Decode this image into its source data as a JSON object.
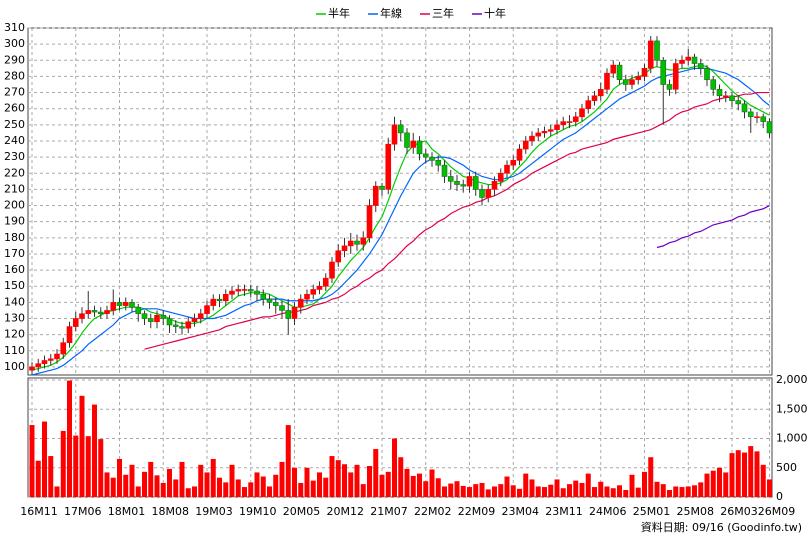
{
  "chart_data": {
    "type": "candlestick",
    "source": "資料日期: 09/16 (Goodinfo.tw)",
    "categories": [
      "16M11",
      null,
      null,
      null,
      null,
      null,
      null,
      "17M06",
      null,
      null,
      null,
      null,
      null,
      null,
      "18M01",
      null,
      null,
      null,
      null,
      null,
      null,
      "18M08",
      null,
      null,
      null,
      null,
      null,
      null,
      "19M03",
      null,
      null,
      null,
      null,
      null,
      null,
      "19M10",
      null,
      null,
      null,
      null,
      null,
      null,
      "20M05",
      null,
      null,
      null,
      null,
      null,
      null,
      "20M12",
      null,
      null,
      null,
      null,
      null,
      null,
      "21M07",
      null,
      null,
      null,
      null,
      null,
      null,
      "22M02",
      null,
      null,
      null,
      null,
      null,
      null,
      "22M09",
      null,
      null,
      null,
      null,
      null,
      null,
      "23M04",
      null,
      null,
      null,
      null,
      null,
      null,
      "23M11",
      null,
      null,
      null,
      null,
      null,
      null,
      "24M06",
      null,
      null,
      null,
      null,
      null,
      null,
      "25M01",
      null,
      null,
      null,
      null,
      null,
      null,
      "25M08",
      null,
      null,
      null,
      null,
      null,
      null,
      "26M03",
      null,
      null,
      null,
      null,
      null,
      "26M09"
    ],
    "open": [
      98,
      100,
      102,
      104,
      105,
      108,
      115,
      125,
      130,
      133,
      135,
      134,
      133,
      135,
      140,
      138,
      140,
      137,
      133,
      130,
      128,
      132,
      130,
      126,
      125,
      124,
      128,
      130,
      133,
      138,
      142,
      141,
      145,
      147,
      148,
      148,
      147,
      145,
      142,
      140,
      138,
      135,
      130,
      137,
      142,
      145,
      148,
      150,
      155,
      165,
      172,
      175,
      178,
      176,
      180,
      200,
      212,
      210,
      238,
      250,
      245,
      236,
      240,
      232,
      230,
      228,
      225,
      218,
      215,
      213,
      212,
      218,
      210,
      205,
      210,
      215,
      220,
      225,
      228,
      235,
      240,
      243,
      245,
      246,
      247,
      250,
      252,
      252,
      255,
      260,
      265,
      268,
      272,
      282,
      287,
      278,
      275,
      278,
      280,
      285,
      302,
      290,
      275,
      272,
      288,
      290,
      292,
      288,
      285,
      278,
      272,
      268,
      268,
      265,
      263,
      258,
      255,
      255,
      252
    ],
    "high": [
      103,
      105,
      107,
      108,
      111,
      118,
      128,
      134,
      137,
      147,
      138,
      137,
      138,
      148,
      143,
      143,
      142,
      139,
      135,
      133,
      135,
      135,
      132,
      129,
      128,
      131,
      133,
      136,
      141,
      145,
      145,
      148,
      150,
      151,
      151,
      151,
      150,
      148,
      145,
      143,
      141,
      142,
      140,
      145,
      148,
      151,
      153,
      158,
      168,
      176,
      180,
      183,
      182,
      184,
      204,
      215,
      214,
      242,
      255,
      253,
      248,
      245,
      243,
      235,
      233,
      231,
      228,
      222,
      219,
      216,
      221,
      221,
      213,
      213,
      218,
      223,
      228,
      231,
      238,
      243,
      246,
      248,
      249,
      250,
      253,
      255,
      256,
      258,
      263,
      268,
      271,
      276,
      285,
      290,
      289,
      281,
      281,
      283,
      288,
      305,
      305,
      292,
      278,
      291,
      293,
      297,
      294,
      291,
      287,
      280,
      275,
      271,
      270,
      268,
      265,
      260,
      258,
      257,
      254
    ],
    "low": [
      95,
      97,
      99,
      101,
      102,
      105,
      112,
      122,
      127,
      130,
      131,
      130,
      130,
      132,
      135,
      135,
      134,
      128,
      126,
      124,
      124,
      126,
      121,
      121,
      120,
      121,
      125,
      127,
      130,
      135,
      137,
      138,
      142,
      144,
      144,
      143,
      141,
      138,
      136,
      133,
      130,
      120,
      126,
      133,
      139,
      142,
      145,
      147,
      152,
      162,
      168,
      170,
      172,
      172,
      177,
      196,
      206,
      207,
      234,
      240,
      232,
      232,
      228,
      226,
      224,
      221,
      214,
      210,
      209,
      208,
      208,
      206,
      200,
      202,
      206,
      212,
      217,
      222,
      225,
      232,
      237,
      240,
      242,
      243,
      244,
      247,
      248,
      249,
      252,
      257,
      262,
      265,
      269,
      279,
      275,
      271,
      272,
      275,
      277,
      282,
      286,
      250,
      268,
      269,
      285,
      287,
      284,
      281,
      274,
      268,
      264,
      264,
      261,
      259,
      254,
      245,
      251,
      248,
      242
    ],
    "close": [
      100,
      102,
      104,
      105,
      108,
      115,
      125,
      130,
      133,
      135,
      134,
      133,
      135,
      140,
      138,
      140,
      137,
      133,
      130,
      128,
      132,
      130,
      126,
      125,
      124,
      128,
      130,
      133,
      138,
      142,
      141,
      145,
      147,
      148,
      148,
      147,
      145,
      142,
      140,
      138,
      135,
      130,
      137,
      142,
      145,
      148,
      150,
      155,
      165,
      172,
      175,
      178,
      176,
      180,
      200,
      212,
      210,
      238,
      250,
      245,
      236,
      240,
      232,
      230,
      228,
      225,
      218,
      215,
      213,
      212,
      218,
      210,
      205,
      210,
      215,
      220,
      225,
      228,
      235,
      240,
      243,
      245,
      246,
      247,
      250,
      252,
      252,
      255,
      260,
      265,
      268,
      272,
      282,
      287,
      278,
      275,
      278,
      280,
      285,
      302,
      290,
      275,
      272,
      288,
      290,
      292,
      288,
      285,
      278,
      272,
      268,
      268,
      265,
      263,
      258,
      255,
      255,
      252,
      245
    ],
    "up_color": "#ff0000",
    "down_color": "#00c000",
    "ylim": [
      95,
      310
    ],
    "yticks": [
      100,
      110,
      120,
      130,
      140,
      150,
      160,
      170,
      180,
      190,
      200,
      210,
      220,
      230,
      240,
      250,
      260,
      270,
      280,
      290,
      300,
      310
    ],
    "grid": true,
    "series": [
      {
        "name": "半年",
        "color": "#00cc00",
        "values": [
          98,
          99,
          100,
          101,
          103,
          106,
          110,
          115,
          121,
          126,
          130,
          132,
          134,
          135,
          136,
          137,
          137,
          137,
          136,
          134,
          133,
          132,
          130,
          128,
          127,
          127,
          127,
          128,
          130,
          132,
          135,
          138,
          141,
          144,
          145,
          146,
          146,
          146,
          145,
          143,
          141,
          139,
          137,
          137,
          138,
          139,
          142,
          146,
          150,
          156,
          161,
          166,
          170,
          174,
          180,
          187,
          193,
          203,
          214,
          224,
          233,
          237,
          239,
          240,
          235,
          232,
          228,
          224,
          221,
          218,
          217,
          215,
          214,
          213,
          213,
          214,
          216,
          220,
          224,
          228,
          233,
          237,
          240,
          243,
          245,
          247,
          249,
          250,
          252,
          255,
          258,
          262,
          266,
          272,
          275,
          277,
          279,
          280,
          281,
          285,
          286,
          285,
          284,
          284,
          285,
          285,
          286,
          287,
          286,
          283,
          279,
          275,
          271,
          268,
          265,
          262,
          260,
          258,
          256
        ]
      },
      {
        "name": "年線",
        "color": "#0066ff",
        "values": [
          95,
          96,
          97,
          98,
          99,
          101,
          104,
          107,
          110,
          114,
          117,
          120,
          123,
          126,
          130,
          132,
          134,
          135,
          136,
          136,
          136,
          135,
          134,
          133,
          132,
          131,
          130,
          130,
          130,
          130,
          131,
          132,
          134,
          136,
          138,
          139,
          141,
          142,
          142,
          142,
          142,
          141,
          141,
          141,
          141,
          141,
          142,
          143,
          145,
          148,
          152,
          156,
          160,
          165,
          170,
          176,
          182,
          190,
          198,
          206,
          213,
          220,
          224,
          227,
          229,
          230,
          230,
          229,
          227,
          225,
          222,
          220,
          218,
          217,
          216,
          216,
          217,
          218,
          220,
          223,
          226,
          229,
          232,
          235,
          238,
          241,
          243,
          245,
          248,
          251,
          254,
          257,
          260,
          263,
          266,
          268,
          270,
          272,
          274,
          277,
          279,
          280,
          281,
          282,
          283,
          284,
          285,
          285,
          285,
          284,
          283,
          282,
          280,
          278,
          275,
          272,
          269,
          265,
          262
        ]
      },
      {
        "name": "三年",
        "color": "#e0004a",
        "values": [
          null,
          null,
          null,
          null,
          null,
          null,
          null,
          null,
          null,
          null,
          null,
          null,
          null,
          null,
          null,
          null,
          null,
          null,
          111,
          112,
          113,
          114,
          115,
          116,
          117,
          118,
          119,
          120,
          121,
          122,
          123,
          125,
          126,
          127,
          128,
          129,
          130,
          131,
          131,
          132,
          133,
          134,
          134,
          135,
          136,
          138,
          139,
          140,
          142,
          143,
          145,
          148,
          150,
          153,
          155,
          158,
          160,
          164,
          167,
          171,
          175,
          178,
          182,
          185,
          187,
          190,
          192,
          195,
          197,
          199,
          200,
          202,
          203,
          205,
          206,
          208,
          210,
          213,
          215,
          217,
          220,
          222,
          224,
          226,
          228,
          230,
          232,
          233,
          235,
          236,
          237,
          238,
          239,
          241,
          242,
          243,
          244,
          245,
          246,
          247,
          249,
          251,
          253,
          256,
          258,
          259,
          261,
          262,
          263,
          265,
          266,
          267,
          267,
          268,
          269,
          269,
          270,
          270,
          270
        ]
      },
      {
        "name": "十年",
        "color": "#6a00c8",
        "values": [
          null,
          null,
          null,
          null,
          null,
          null,
          null,
          null,
          null,
          null,
          null,
          null,
          null,
          null,
          null,
          null,
          null,
          null,
          null,
          null,
          null,
          null,
          null,
          null,
          null,
          null,
          null,
          null,
          null,
          null,
          null,
          null,
          null,
          null,
          null,
          null,
          null,
          null,
          null,
          null,
          null,
          null,
          null,
          null,
          null,
          null,
          null,
          null,
          null,
          null,
          null,
          null,
          null,
          null,
          null,
          null,
          null,
          null,
          null,
          null,
          null,
          null,
          null,
          null,
          null,
          null,
          null,
          null,
          null,
          null,
          null,
          null,
          null,
          null,
          null,
          null,
          null,
          null,
          null,
          null,
          null,
          null,
          null,
          null,
          null,
          null,
          null,
          null,
          null,
          null,
          null,
          null,
          null,
          null,
          null,
          null,
          null,
          null,
          null,
          null,
          174,
          175,
          177,
          178,
          180,
          181,
          183,
          184,
          186,
          188,
          189,
          190,
          191,
          193,
          194,
          196,
          197,
          198,
          200
        ]
      }
    ],
    "volume": {
      "color": "#ff0000",
      "ylim": [
        0,
        2000
      ],
      "yticks": [
        0,
        500,
        {
          "value": 1000,
          "label": "1,000"
        },
        {
          "value": 1500,
          "label": "1,500"
        },
        {
          "value": 2000,
          "label": "2,000"
        }
      ],
      "values": [
        1230,
        620,
        1290,
        700,
        180,
        1130,
        1990,
        1050,
        1730,
        1040,
        1580,
        990,
        420,
        330,
        650,
        380,
        550,
        180,
        430,
        600,
        370,
        240,
        480,
        300,
        600,
        150,
        180,
        550,
        420,
        650,
        330,
        250,
        550,
        300,
        170,
        250,
        420,
        350,
        180,
        380,
        600,
        1230,
        500,
        240,
        500,
        280,
        420,
        330,
        700,
        630,
        560,
        420,
        550,
        220,
        530,
        820,
        380,
        430,
        1000,
        680,
        480,
        360,
        400,
        270,
        470,
        320,
        180,
        230,
        270,
        190,
        170,
        220,
        240,
        130,
        180,
        220,
        350,
        200,
        140,
        400,
        300,
        180,
        170,
        210,
        300,
        150,
        220,
        280,
        240,
        400,
        170,
        260,
        180,
        150,
        200,
        120,
        380,
        160,
        430,
        680,
        260,
        220,
        120,
        180,
        170,
        180,
        200,
        250,
        400,
        450,
        500,
        420,
        750,
        800,
        760,
        870,
        780,
        550,
        300
      ]
    }
  }
}
